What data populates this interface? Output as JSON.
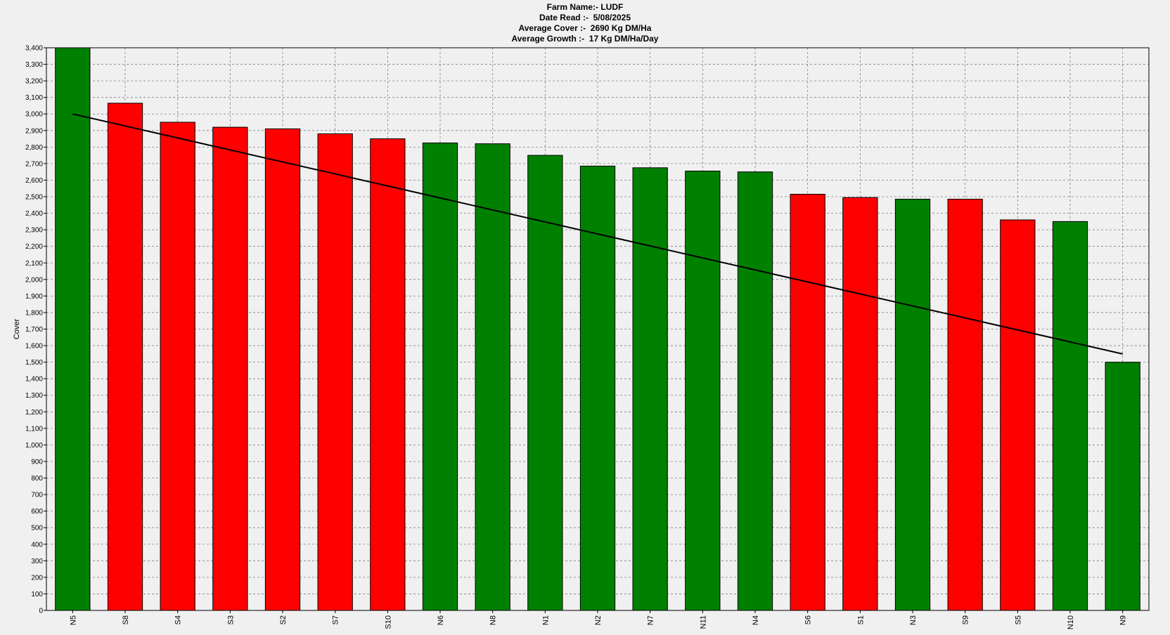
{
  "header": {
    "farm_line": "Farm Name:- LUDF",
    "date_line": "Date Read :-  5/08/2025",
    "cover_line": "Average Cover :-  2690 Kg DM/Ha",
    "growth_line": "Average Growth :-  17 Kg DM/Ha/Day"
  },
  "chart_data": {
    "type": "bar",
    "title": "",
    "xlabel": "",
    "ylabel": "Cover",
    "ylim": [
      0,
      3400
    ],
    "ytick_step": 100,
    "grid": true,
    "categories": [
      "N5",
      "S8",
      "S4",
      "S3",
      "S2",
      "S7",
      "S10",
      "N6",
      "N8",
      "N1",
      "N2",
      "N7",
      "N11",
      "N4",
      "S6",
      "S1",
      "N3",
      "S9",
      "S5",
      "N10",
      "N9"
    ],
    "values": [
      3400,
      3065,
      2950,
      2920,
      2910,
      2880,
      2850,
      2825,
      2820,
      2750,
      2685,
      2675,
      2655,
      2650,
      2515,
      2495,
      2485,
      2485,
      2360,
      2350,
      1500
    ],
    "bar_colors": [
      "#008000",
      "#ff0000",
      "#ff0000",
      "#ff0000",
      "#ff0000",
      "#ff0000",
      "#ff0000",
      "#008000",
      "#008000",
      "#008000",
      "#008000",
      "#008000",
      "#008000",
      "#008000",
      "#ff0000",
      "#ff0000",
      "#008000",
      "#ff0000",
      "#ff0000",
      "#008000",
      "#008000"
    ],
    "trend_line": {
      "start": 3000,
      "end": 1550
    },
    "colors": {
      "green": "#008000",
      "red": "#ff0000",
      "trend": "#000000",
      "grid": "#808080"
    }
  }
}
